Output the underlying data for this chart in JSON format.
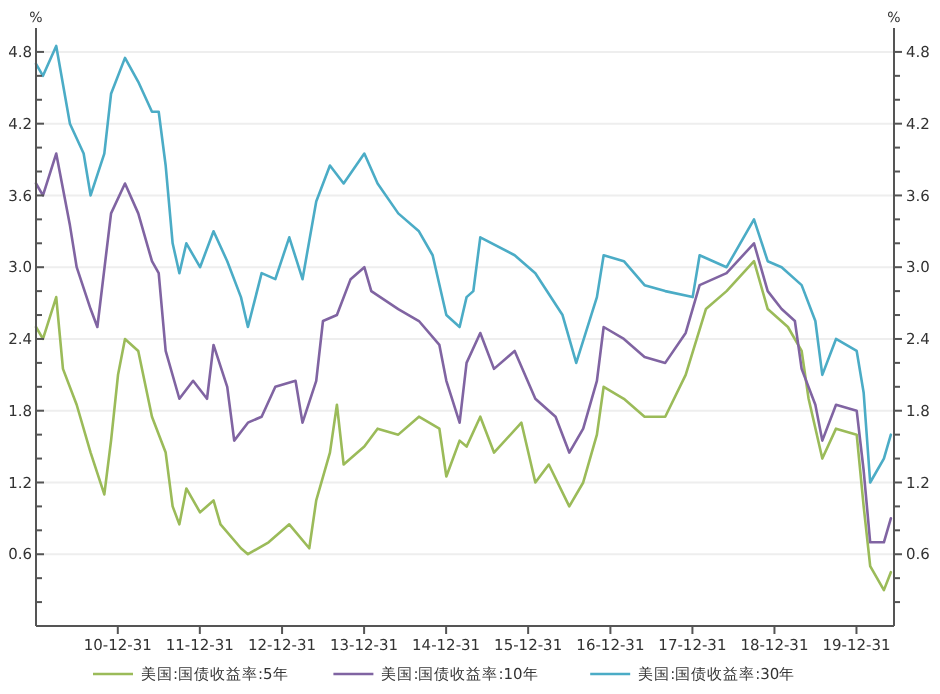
{
  "chart_data": {
    "type": "line",
    "ylabel": "%",
    "y2label": "%",
    "xlim": [
      "2010-01-01",
      "2020-06-15"
    ],
    "ylim": [
      0,
      5
    ],
    "y2lim": [
      0,
      5
    ],
    "xticks": [
      {
        "value": "2010-12-31",
        "label": "10-12-31"
      },
      {
        "value": "2011-12-31",
        "label": "11-12-31"
      },
      {
        "value": "2012-12-31",
        "label": "12-12-31"
      },
      {
        "value": "2013-12-31",
        "label": "13-12-31"
      },
      {
        "value": "2014-12-31",
        "label": "14-12-31"
      },
      {
        "value": "2015-12-31",
        "label": "15-12-31"
      },
      {
        "value": "2016-12-31",
        "label": "16-12-31"
      },
      {
        "value": "2017-12-31",
        "label": "17-12-31"
      },
      {
        "value": "2018-12-31",
        "label": "18-12-31"
      },
      {
        "value": "2019-12-31",
        "label": "19-12-31"
      }
    ],
    "yticks": [
      {
        "value": 0.2,
        "label": null
      },
      {
        "value": 0.4,
        "label": null
      },
      0.6,
      {
        "value": 0.8,
        "label": null
      },
      {
        "value": 1,
        "label": null
      },
      1.2,
      {
        "value": 1.4,
        "label": null
      },
      {
        "value": 1.6,
        "label": null
      },
      1.8,
      {
        "value": 2,
        "label": null
      },
      {
        "value": 2.2,
        "label": null
      },
      2.4,
      {
        "value": 2.6,
        "label": null
      },
      {
        "value": 2.8,
        "label": null
      },
      {
        "value": 3,
        "label": "3.0"
      },
      {
        "value": 3.2,
        "label": null
      },
      {
        "value": 3.4,
        "label": null
      },
      3.6,
      {
        "value": 3.8,
        "label": null
      },
      {
        "value": 4,
        "label": null
      },
      4.2,
      {
        "value": 4.4,
        "label": null
      },
      {
        "value": 4.6,
        "label": null
      },
      4.8
    ],
    "y2ticks": [
      {
        "value": 0.2,
        "label": null
      },
      {
        "value": 0.4,
        "label": null
      },
      0.6,
      {
        "value": 0.8,
        "label": null
      },
      {
        "value": 1,
        "label": null
      },
      1.2,
      {
        "value": 1.4,
        "label": null
      },
      {
        "value": 1.6,
        "label": null
      },
      1.8,
      {
        "value": 2,
        "label": null
      },
      {
        "value": 2.2,
        "label": null
      },
      2.4,
      {
        "value": 2.6,
        "label": null
      },
      {
        "value": 2.8,
        "label": null
      },
      {
        "value": 3,
        "label": "3.0"
      },
      {
        "value": 3.2,
        "label": null
      },
      {
        "value": 3.4,
        "label": null
      },
      3.6,
      {
        "value": 3.8,
        "label": null
      },
      {
        "value": 4,
        "label": null
      },
      4.2,
      {
        "value": 4.4,
        "label": null
      },
      {
        "value": 4.6,
        "label": null
      },
      4.8
    ],
    "grid": "y",
    "legend": "bottom",
    "series": [
      {
        "name": "美国:国债收益率:5年",
        "color": "#9bbb59",
        "x": [
          "2010-01",
          "2010-02",
          "2010-04",
          "2010-05",
          "2010-07",
          "2010-09",
          "2010-11",
          "2010-12",
          "2011-01",
          "2011-02",
          "2011-04",
          "2011-06",
          "2011-08",
          "2011-09",
          "2011-10",
          "2011-11",
          "2012-01",
          "2012-03",
          "2012-04",
          "2012-07",
          "2012-08",
          "2012-11",
          "2013-02",
          "2013-05",
          "2013-06",
          "2013-08",
          "2013-09",
          "2013-10",
          "2014-01",
          "2014-03",
          "2014-06",
          "2014-09",
          "2014-12",
          "2015-01",
          "2015-03",
          "2015-04",
          "2015-06",
          "2015-08",
          "2015-12",
          "2016-02",
          "2016-04",
          "2016-07",
          "2016-09",
          "2016-11",
          "2016-12",
          "2017-03",
          "2017-06",
          "2017-09",
          "2017-12",
          "2018-03",
          "2018-06",
          "2018-10",
          "2018-12",
          "2019-03",
          "2019-05",
          "2019-06",
          "2019-08",
          "2019-10",
          "2020-01",
          "2020-02",
          "2020-03",
          "2020-05",
          "2020-06"
        ],
        "values": [
          2.5,
          2.4,
          2.75,
          2.15,
          1.85,
          1.45,
          1.1,
          1.55,
          2.1,
          2.4,
          2.3,
          1.75,
          1.45,
          1.0,
          0.85,
          1.15,
          0.95,
          1.05,
          0.85,
          0.65,
          0.6,
          0.7,
          0.85,
          0.65,
          1.05,
          1.45,
          1.85,
          1.35,
          1.5,
          1.65,
          1.6,
          1.75,
          1.65,
          1.25,
          1.55,
          1.5,
          1.75,
          1.45,
          1.7,
          1.2,
          1.35,
          1.0,
          1.2,
          1.6,
          2.0,
          1.9,
          1.75,
          1.75,
          2.1,
          2.65,
          2.8,
          3.05,
          2.65,
          2.5,
          2.3,
          1.9,
          1.4,
          1.65,
          1.6,
          1.0,
          0.5,
          0.3,
          0.45
        ]
      },
      {
        "name": "美国:国债收益率:10年",
        "color": "#8064a2",
        "x": [
          "2010-01",
          "2010-02",
          "2010-04",
          "2010-06",
          "2010-07",
          "2010-09",
          "2010-10",
          "2010-12",
          "2011-02",
          "2011-04",
          "2011-06",
          "2011-07",
          "2011-08",
          "2011-10",
          "2011-12",
          "2012-02",
          "2012-03",
          "2012-05",
          "2012-06",
          "2012-08",
          "2012-10",
          "2012-12",
          "2013-03",
          "2013-04",
          "2013-06",
          "2013-07",
          "2013-09",
          "2013-11",
          "2014-01",
          "2014-02",
          "2014-06",
          "2014-09",
          "2014-12",
          "2015-01",
          "2015-03",
          "2015-04",
          "2015-06",
          "2015-08",
          "2015-11",
          "2016-02",
          "2016-05",
          "2016-07",
          "2016-09",
          "2016-11",
          "2016-12",
          "2017-03",
          "2017-06",
          "2017-09",
          "2017-12",
          "2018-02",
          "2018-06",
          "2018-10",
          "2018-12",
          "2019-02",
          "2019-04",
          "2019-05",
          "2019-07",
          "2019-08",
          "2019-10",
          "2020-01",
          "2020-02",
          "2020-03",
          "2020-05",
          "2020-06"
        ],
        "values": [
          3.7,
          3.6,
          3.95,
          3.35,
          3.0,
          2.65,
          2.5,
          3.45,
          3.7,
          3.45,
          3.05,
          2.95,
          2.3,
          1.9,
          2.05,
          1.9,
          2.35,
          2.0,
          1.55,
          1.7,
          1.75,
          2.0,
          2.05,
          1.7,
          2.05,
          2.55,
          2.6,
          2.9,
          3.0,
          2.8,
          2.65,
          2.55,
          2.35,
          2.05,
          1.7,
          2.2,
          2.45,
          2.15,
          2.3,
          1.9,
          1.75,
          1.45,
          1.65,
          2.05,
          2.5,
          2.4,
          2.25,
          2.2,
          2.45,
          2.85,
          2.95,
          3.2,
          2.8,
          2.65,
          2.55,
          2.15,
          1.85,
          1.55,
          1.85,
          1.8,
          1.3,
          0.7,
          0.7,
          0.9
        ]
      },
      {
        "name": "美国:国债收益率:30年",
        "color": "#4bacc6",
        "x": [
          "2010-01",
          "2010-02",
          "2010-04",
          "2010-06",
          "2010-08",
          "2010-09",
          "2010-11",
          "2010-12",
          "2011-02",
          "2011-04",
          "2011-06",
          "2011-07",
          "2011-08",
          "2011-09",
          "2011-10",
          "2011-11",
          "2012-01",
          "2012-03",
          "2012-05",
          "2012-07",
          "2012-08",
          "2012-10",
          "2012-12",
          "2013-02",
          "2013-04",
          "2013-06",
          "2013-08",
          "2013-10",
          "2014-01",
          "2014-03",
          "2014-06",
          "2014-09",
          "2014-11",
          "2015-01",
          "2015-03",
          "2015-04",
          "2015-05",
          "2015-06",
          "2015-11",
          "2016-02",
          "2016-06",
          "2016-08",
          "2016-11",
          "2016-12",
          "2017-03",
          "2017-06",
          "2017-09",
          "2018-01",
          "2018-02",
          "2018-06",
          "2018-10",
          "2018-12",
          "2019-02",
          "2019-05",
          "2019-07",
          "2019-08",
          "2019-10",
          "2020-01",
          "2020-02",
          "2020-03",
          "2020-05",
          "2020-06"
        ],
        "values": [
          4.7,
          4.6,
          4.85,
          4.2,
          3.95,
          3.6,
          3.95,
          4.45,
          4.75,
          4.55,
          4.3,
          4.3,
          3.85,
          3.2,
          2.95,
          3.2,
          3.0,
          3.3,
          3.05,
          2.75,
          2.5,
          2.95,
          2.9,
          3.25,
          2.9,
          3.55,
          3.85,
          3.7,
          3.95,
          3.7,
          3.45,
          3.3,
          3.1,
          2.6,
          2.5,
          2.75,
          2.8,
          3.25,
          3.1,
          2.95,
          2.6,
          2.2,
          2.75,
          3.1,
          3.05,
          2.85,
          2.8,
          2.75,
          3.1,
          3.0,
          3.4,
          3.05,
          3.0,
          2.85,
          2.55,
          2.1,
          2.4,
          2.3,
          1.95,
          1.2,
          1.4,
          1.6
        ]
      }
    ]
  }
}
